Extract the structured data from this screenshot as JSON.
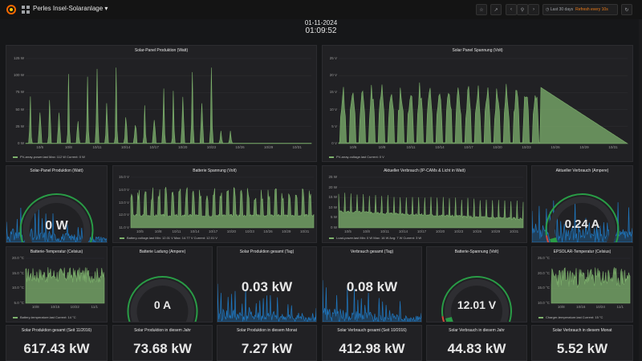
{
  "header": {
    "title": "Perles Insel-Solaranlage",
    "time_range": "Last 30 days",
    "refresh": "Refresh every 10s"
  },
  "clock": {
    "date": "01-11-2024",
    "time": "01:09:52"
  },
  "colors": {
    "series": "#7eb26d",
    "blue": "#1f78c1",
    "gauge_green": "#299c46",
    "gauge_red": "#d44a3a"
  },
  "panels": {
    "pv_power": {
      "title": "Solar-Panel Produktion (Watt)",
      "y_ticks": [
        "125 W",
        "100 W",
        "75 W",
        "50 W",
        "25 W",
        "0 W"
      ],
      "x_ticks": [
        "10/5",
        "10/8",
        "10/11",
        "10/14",
        "10/17",
        "10/20",
        "10/23",
        "10/26",
        "10/29",
        "10/31"
      ],
      "legend": "PV-array-power.last   Max: 112 W   Current: 0 W"
    },
    "pv_voltage": {
      "title": "Solar Panel Spannung (Volt)",
      "y_ticks": [
        "25 V",
        "20 V",
        "15 V",
        "10 V",
        "5 V",
        "0 V"
      ],
      "x_ticks": [
        "10/5",
        "10/8",
        "10/11",
        "10/14",
        "10/17",
        "10/20",
        "10/23",
        "10/26",
        "10/29",
        "10/31"
      ],
      "legend": "PV-array-voltage.last   Current: 0 V"
    },
    "pv_power_gauge": {
      "title": "Solar-Panel Produktion (Watt)",
      "value": "0 W",
      "min": "0",
      "max": "120"
    },
    "battery_voltage": {
      "title": "Batterie Spannung (Volt)",
      "y_ticks": [
        "15.0 V",
        "14.0 V",
        "13.0 V",
        "12.0 V",
        "11.0 V"
      ],
      "x_ticks": [
        "10/5",
        "10/8",
        "10/11",
        "10/14",
        "10/17",
        "10/20",
        "10/23",
        "10/26",
        "10/29",
        "10/31"
      ],
      "legend": "Battery-voltage.last   Min: 12.01 V   Max: 14.77 V   Current: 12.01 V"
    },
    "load_power": {
      "title": "Aktueller Verbrauch (IP-CAMs & Licht in Watt)",
      "y_ticks": [
        "25 W",
        "20 W",
        "15 W",
        "10 W",
        "5 W",
        "0 W"
      ],
      "x_ticks": [
        "10/5",
        "10/8",
        "10/11",
        "10/14",
        "10/17",
        "10/20",
        "10/23",
        "10/26",
        "10/29",
        "10/31"
      ],
      "legend": "Load-power.last   Min: 0 W   Max: 16 W   Avg: 7 W   Current: 3 W"
    },
    "load_current": {
      "title": "Aktueller Verbrauch (Ampere)",
      "value": "0.24 A"
    },
    "battery_temp": {
      "title": "Batterie-Temperatur (Celsius)",
      "y_ticks": [
        "20.0 °C",
        "15.0 °C",
        "10.0 °C",
        "5.0 °C"
      ],
      "x_ticks": [
        "10/8",
        "10/15",
        "10/22",
        "11/1"
      ],
      "legend": "Battery-temperature.last   Current: 14 °C"
    },
    "battery_charge": {
      "title": "Batterie Ladung (Ampere)",
      "value": "0 A",
      "min": "0",
      "max": "10"
    },
    "solar_day": {
      "title": "Solar Produktion gesamt (Tag)",
      "value": "0.03 kW"
    },
    "consumption_day": {
      "title": "Verbrauch gesamt (Tag)",
      "value": "0.08 kW"
    },
    "battery_voltage_gauge": {
      "title": "Batterie-Spannung (Volt)",
      "value": "12.01 V",
      "min": "11.8",
      "max": "15.5"
    },
    "epsolar_temp": {
      "title": "EPSOLAR-Temperatur (Celsius)",
      "y_ticks": [
        "25.0 °C",
        "20.0 °C",
        "15.0 °C",
        "10.0 °C"
      ],
      "x_ticks": [
        "10/8",
        "10/16",
        "10/24",
        "11/1"
      ],
      "legend": "Charger-temperature.last   Current: 15 °C"
    }
  },
  "stats": [
    {
      "title": "Solar Produktion gesamt (Seit 11/2016)",
      "value": "617.43 kW"
    },
    {
      "title": "Solar Produktion in diesem Jahr",
      "value": "73.68 kW"
    },
    {
      "title": "Solar Produktion in diesem Monat",
      "value": "7.27 kW"
    },
    {
      "title": "Solar Verbrauch gesamt (Seit 10/2016)",
      "value": "412.98 kW"
    },
    {
      "title": "Solar Verbrauch in diesem Jahr",
      "value": "44.83 kW"
    },
    {
      "title": "Solar Verbrauch in diesem Monat",
      "value": "5.52 kW"
    }
  ]
}
